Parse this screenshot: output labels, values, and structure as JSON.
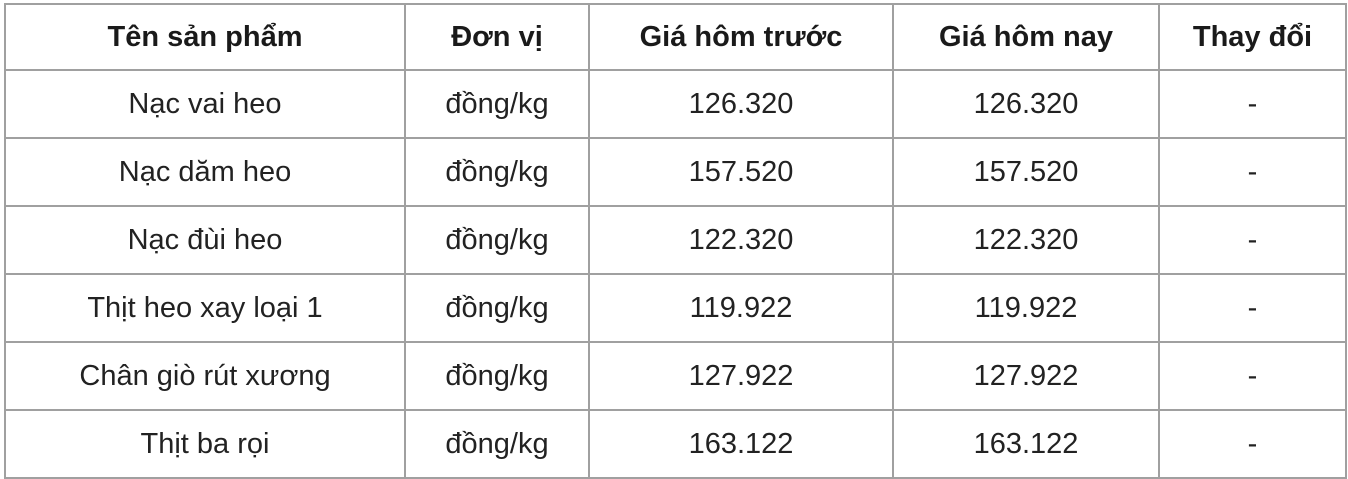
{
  "table": {
    "headers": [
      "Tên sản phẩm",
      "Đơn vị",
      "Giá hôm trước",
      "Giá hôm nay",
      "Thay đổi"
    ],
    "rows": [
      [
        "Nạc vai heo",
        "đồng/kg",
        "126.320",
        "126.320",
        "-"
      ],
      [
        "Nạc dăm heo",
        "đồng/kg",
        "157.520",
        "157.520",
        "-"
      ],
      [
        "Nạc đùi heo",
        "đồng/kg",
        "122.320",
        "122.320",
        "-"
      ],
      [
        "Thịt heo xay loại 1",
        "đồng/kg",
        "119.922",
        "119.922",
        "-"
      ],
      [
        "Chân giò rút xương",
        "đồng/kg",
        "127.922",
        "127.922",
        "-"
      ],
      [
        "Thịt ba rọi",
        "đồng/kg",
        "163.122",
        "163.122",
        "-"
      ]
    ]
  }
}
